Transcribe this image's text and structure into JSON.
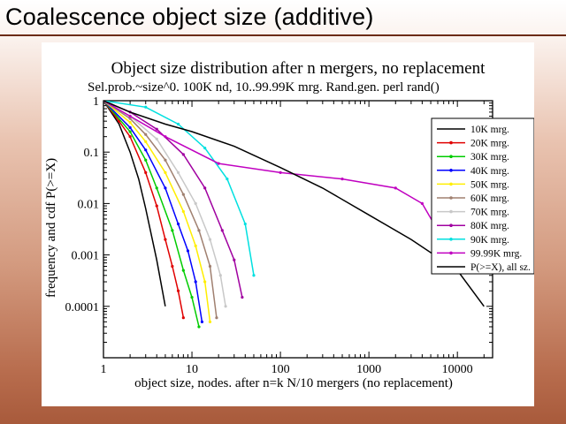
{
  "slide": {
    "title": "Coalescence object size (additive)"
  },
  "chart_data": {
    "type": "line",
    "title": "Object size distribution after n mergers, no replacement",
    "subtitle": "Sel.prob.~size^0. 100K nd, 10..99.99K mrg. Rand.gen. perl rand()",
    "xlabel": "object size, nodes. after n=k N/10 mergers (no replacement)",
    "ylabel": "frequency and cdf P(>=X)",
    "xscale": "log",
    "yscale": "log",
    "xlim": [
      1,
      25000
    ],
    "ylim": [
      1e-05,
      1
    ],
    "x_ticks": [
      {
        "value": 1,
        "label": "1"
      },
      {
        "value": 10,
        "label": "10"
      },
      {
        "value": 100,
        "label": "100"
      },
      {
        "value": 1000,
        "label": "1000"
      },
      {
        "value": 10000,
        "label": "10000"
      }
    ],
    "y_ticks": [
      {
        "value": 1,
        "label": "1"
      },
      {
        "value": 0.1,
        "label": "0.1"
      },
      {
        "value": 0.01,
        "label": "0.01"
      },
      {
        "value": 0.001,
        "label": "0.001"
      },
      {
        "value": 0.0001,
        "label": "0.0001"
      }
    ],
    "grid": false,
    "legend_position": "right",
    "series": [
      {
        "name": "10K mrg.",
        "color": "#000000",
        "x": [
          1,
          1.5,
          2,
          2.5,
          3,
          4,
          5
        ],
        "y": [
          1,
          0.35,
          0.1,
          0.03,
          0.008,
          0.0008,
          0.0001
        ]
      },
      {
        "name": "20K mrg.",
        "color": "#e00000",
        "x": [
          1,
          1.5,
          2,
          3,
          4,
          5,
          6,
          7,
          8
        ],
        "y": [
          1,
          0.4,
          0.2,
          0.04,
          0.009,
          0.002,
          0.0006,
          0.0002,
          6e-05
        ]
      },
      {
        "name": "30K mrg.",
        "color": "#00cc00",
        "x": [
          1,
          2,
          3,
          4,
          6,
          8,
          10,
          12
        ],
        "y": [
          1,
          0.25,
          0.07,
          0.02,
          0.003,
          0.0005,
          0.00015,
          4e-05
        ]
      },
      {
        "name": "40K mrg.",
        "color": "#0000ff",
        "x": [
          1,
          2,
          3,
          5,
          7,
          9,
          11,
          13
        ],
        "y": [
          1,
          0.3,
          0.11,
          0.02,
          0.004,
          0.0012,
          0.0003,
          5e-05
        ]
      },
      {
        "name": "50K mrg.",
        "color": "#ffee00",
        "x": [
          1,
          2,
          3,
          5,
          8,
          11,
          14,
          16
        ],
        "y": [
          1,
          0.38,
          0.16,
          0.04,
          0.007,
          0.0015,
          0.0003,
          5e-05
        ]
      },
      {
        "name": "60K mrg.",
        "color": "#a08070",
        "x": [
          1,
          2,
          3,
          5,
          8,
          12,
          16,
          19
        ],
        "y": [
          1,
          0.45,
          0.22,
          0.07,
          0.015,
          0.003,
          0.0006,
          6e-05
        ]
      },
      {
        "name": "70K mrg.",
        "color": "#c8c8c8",
        "x": [
          1,
          2,
          4,
          7,
          11,
          16,
          21,
          24
        ],
        "y": [
          1,
          0.5,
          0.18,
          0.04,
          0.01,
          0.002,
          0.0004,
          0.0001
        ]
      },
      {
        "name": "80K mrg.",
        "color": "#a000a0",
        "x": [
          1,
          2,
          4,
          8,
          14,
          22,
          30,
          37
        ],
        "y": [
          1,
          0.6,
          0.28,
          0.09,
          0.02,
          0.003,
          0.0008,
          0.00015
        ]
      },
      {
        "name": "90K mrg.",
        "color": "#00e0e0",
        "x": [
          1,
          3,
          7,
          14,
          25,
          40,
          50
        ],
        "y": [
          1,
          0.75,
          0.35,
          0.12,
          0.03,
          0.004,
          0.0004
        ]
      },
      {
        "name": "99.99K mrg.",
        "color": "#c000c0",
        "x": [
          1,
          2,
          5,
          20,
          100,
          500,
          2000,
          4000,
          6000,
          8000
        ],
        "y": [
          1,
          0.5,
          0.2,
          0.06,
          0.04,
          0.03,
          0.02,
          0.01,
          0.003,
          0.0006
        ]
      },
      {
        "name": "P(>=X), all sz.",
        "color": "#000000",
        "x": [
          1,
          2,
          5,
          10,
          30,
          100,
          300,
          1000,
          3000,
          10000,
          20000
        ],
        "y": [
          1,
          0.6,
          0.35,
          0.25,
          0.13,
          0.05,
          0.02,
          0.006,
          0.002,
          0.0005,
          0.0001
        ]
      }
    ]
  }
}
